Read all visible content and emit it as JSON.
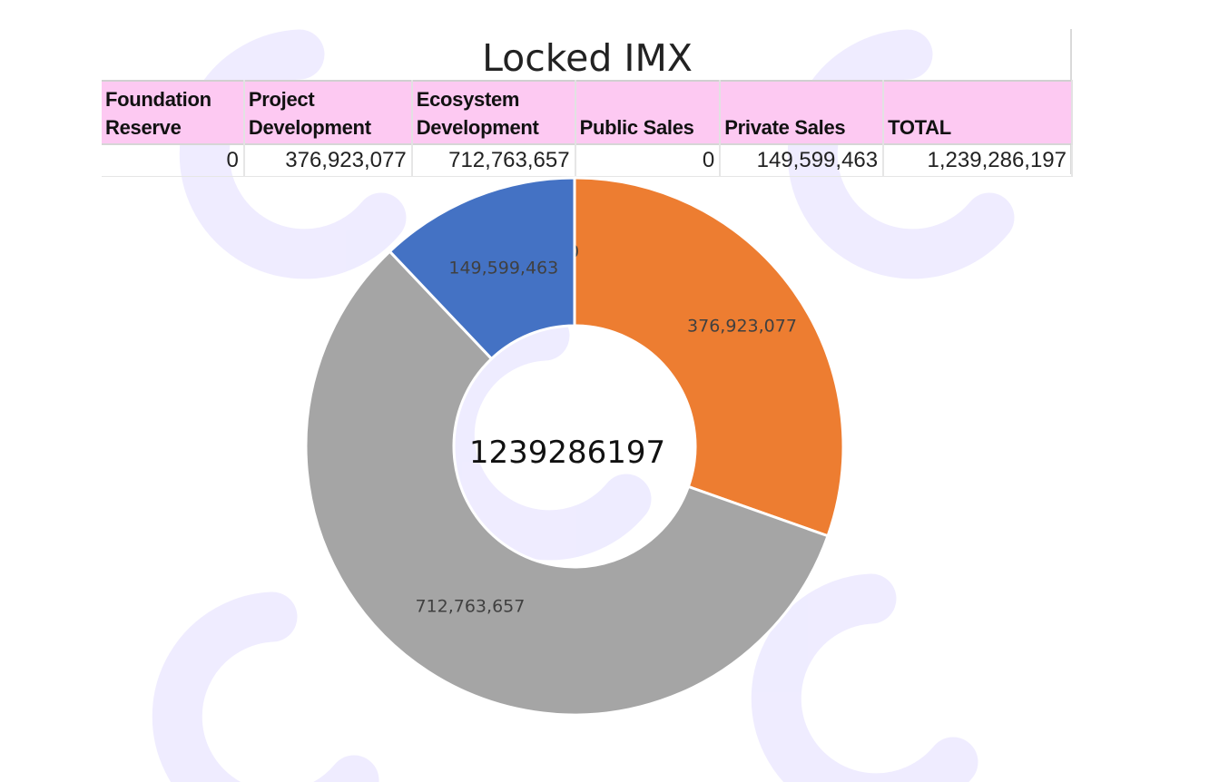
{
  "chart_data": {
    "type": "table",
    "title": "Locked IMX",
    "columns": [
      "Foundation Reserve",
      "Project Development",
      "Ecosystem Development",
      "Public Sales",
      "Private Sales",
      "TOTAL"
    ],
    "column_lines": [
      [
        "Foundation",
        "Reserve"
      ],
      [
        "Project",
        "Development"
      ],
      [
        "Ecosystem",
        "Development"
      ],
      [
        "Public Sales"
      ],
      [
        "Private Sales"
      ],
      [
        "TOTAL"
      ]
    ],
    "row": [
      "0",
      "376,923,077",
      "712,763,657",
      "0",
      "149,599,463",
      "1,239,286,197"
    ],
    "donut": {
      "type": "pie",
      "center_label": "1239286197",
      "slices": [
        {
          "category": "Foundation Reserve",
          "value": 0,
          "label": "0",
          "color": "#4472c4"
        },
        {
          "category": "Project Development",
          "value": 376923077,
          "label": "376,923,077",
          "color": "#ed7d31"
        },
        {
          "category": "Ecosystem Development",
          "value": 712763657,
          "label": "712,763,657",
          "color": "#a5a5a5"
        },
        {
          "category": "Public Sales",
          "value": 0,
          "label": "0",
          "color": "#ffc000"
        },
        {
          "category": "Private Sales",
          "value": 149599463,
          "label": "149,599,463",
          "color": "#4472c4"
        }
      ]
    }
  }
}
